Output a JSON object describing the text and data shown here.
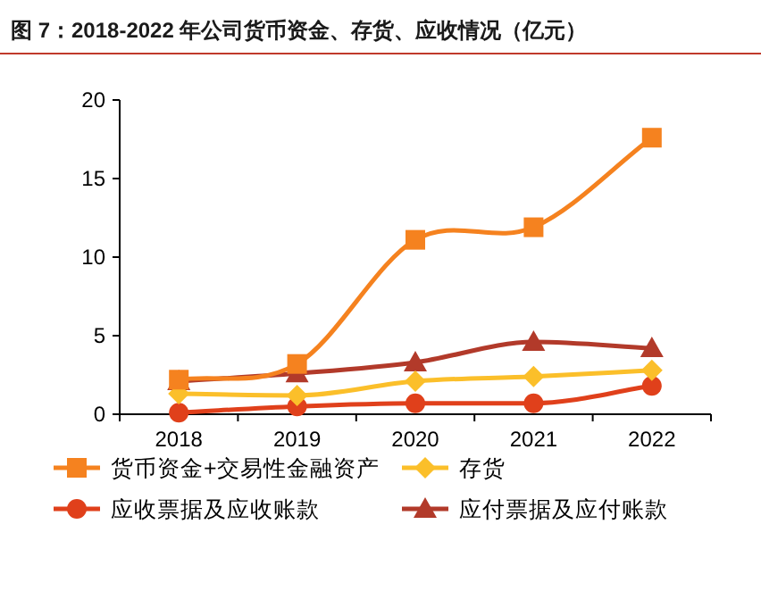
{
  "chart_data": {
    "type": "line",
    "title": "图 7：2018-2022 年公司货币资金、存货、应收情况（亿元）",
    "categories": [
      "2018",
      "2019",
      "2020",
      "2021",
      "2022"
    ],
    "series": [
      {
        "name": "货币资金+交易性金融资产",
        "color": "#f5821f",
        "marker": "square",
        "values": [
          2.2,
          3.2,
          11.1,
          11.9,
          17.6
        ]
      },
      {
        "name": "存货",
        "color": "#fbbf2a",
        "marker": "diamond",
        "values": [
          1.3,
          1.2,
          2.1,
          2.4,
          2.8
        ]
      },
      {
        "name": "应收票据及应收账款",
        "color": "#e0401b",
        "marker": "circle",
        "values": [
          0.1,
          0.5,
          0.7,
          0.7,
          1.8
        ]
      },
      {
        "name": "应付票据及应付账款",
        "color": "#b23a2a",
        "marker": "triangle",
        "values": [
          2.1,
          2.6,
          3.3,
          4.6,
          4.2
        ]
      }
    ],
    "ylim": [
      0,
      20
    ],
    "yticks": [
      0,
      5,
      10,
      15,
      20
    ],
    "legend": "bottom",
    "grid": false,
    "line_style": "solid"
  }
}
